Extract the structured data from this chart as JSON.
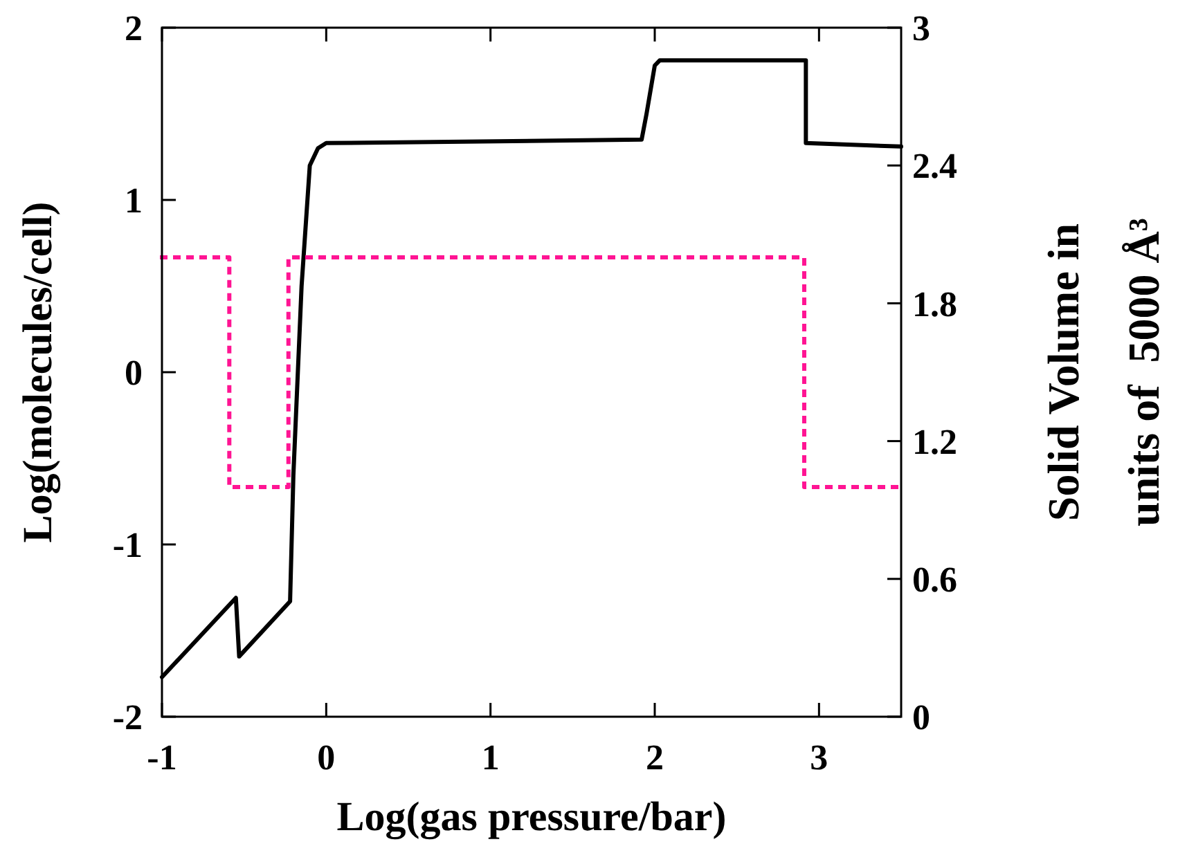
{
  "chart_data": {
    "type": "line",
    "xlabel": "Log(gas pressure/bar)",
    "ylabel": "Log(molecules/cell)",
    "y2label": "Solid Volume in\nunits of  5000 Å³",
    "xlim": [
      -1,
      3.5
    ],
    "xticks": [
      -1,
      0,
      1,
      2,
      3
    ],
    "ylim": [
      -2,
      2
    ],
    "yticks": [
      -2,
      -1,
      0,
      1,
      2
    ],
    "y2lim": [
      0,
      3
    ],
    "y2ticks": [
      0,
      0.6,
      1.2,
      1.8,
      2.4,
      3
    ],
    "grid": false,
    "series": [
      {
        "color": "#000000",
        "line_style": "solid",
        "x": [
          -1,
          -0.55,
          -0.53,
          -0.22,
          -0.2,
          -0.15,
          -0.1,
          -0.05,
          0,
          1.92,
          1.95,
          2.0,
          2.03,
          2.92,
          2.92,
          3.5
        ],
        "values": [
          -1.77,
          -1.31,
          -1.65,
          -1.33,
          -0.6,
          0.5,
          1.2,
          1.3,
          1.33,
          1.35,
          1.5,
          1.78,
          1.81,
          1.81,
          1.33,
          1.31
        ]
      },
      {
        "color": "#ff1493",
        "line_style": "dotted",
        "axis": "y2",
        "x": [
          -1,
          -0.59,
          -0.59,
          -0.23,
          -0.23,
          2.91,
          2.91,
          3.5
        ],
        "values": [
          2,
          2,
          1,
          1,
          2,
          2,
          1,
          1
        ]
      }
    ]
  }
}
